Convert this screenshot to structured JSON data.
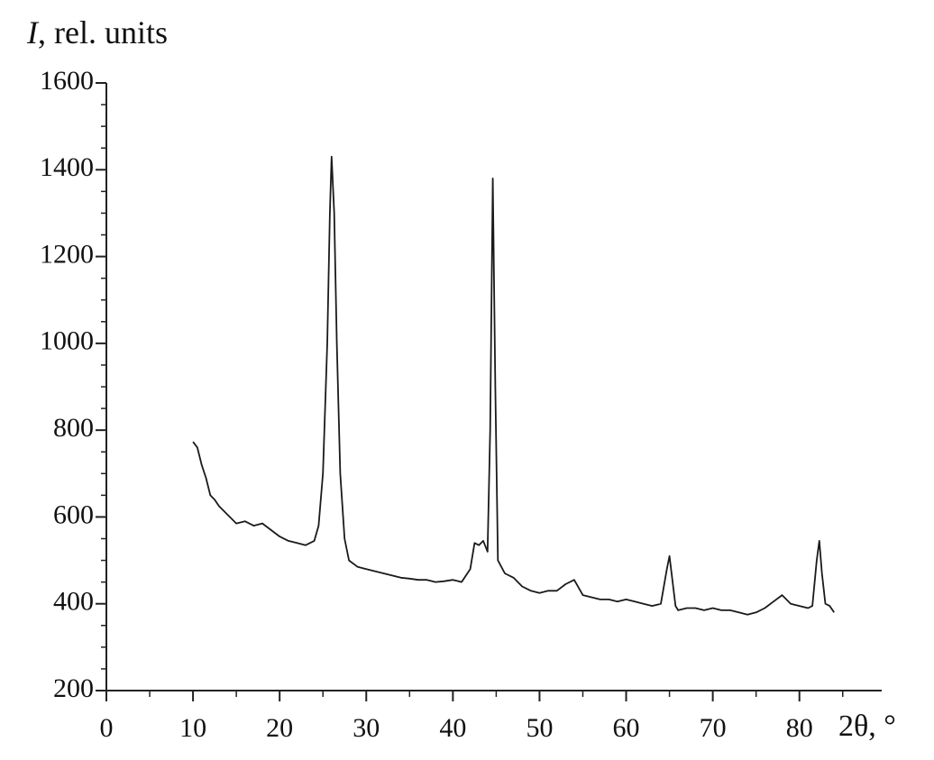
{
  "chart_data": {
    "type": "line",
    "ylabel": {
      "symbol": "I",
      "text": ", rel. units"
    },
    "xlabel": "2θ, °",
    "xlim": [
      0,
      89.5
    ],
    "ylim": [
      200,
      1600
    ],
    "xticks": [
      0,
      10,
      20,
      30,
      40,
      50,
      60,
      70,
      80
    ],
    "yticks": [
      200,
      400,
      600,
      800,
      1000,
      1200,
      1400,
      1600
    ],
    "xticks_minor": [
      5,
      15,
      25,
      35,
      45,
      55,
      65,
      75,
      85
    ],
    "yticks_minor": [
      250,
      300,
      350,
      450,
      500,
      550,
      650,
      700,
      750,
      850,
      900,
      950,
      1050,
      1100,
      1150,
      1250,
      1300,
      1350,
      1450,
      1500,
      1550
    ],
    "series": [
      {
        "color": "#1a1a1a",
        "x": [
          10,
          10.5,
          11,
          11.5,
          12,
          12.5,
          13,
          14,
          15,
          16,
          17,
          18,
          19,
          20,
          21,
          22,
          23,
          24,
          24.5,
          25,
          25.5,
          25.8,
          26,
          26.3,
          26.6,
          27,
          27.5,
          28,
          29,
          30,
          31,
          32,
          33,
          34,
          35,
          36,
          37,
          38,
          39,
          40,
          41,
          42,
          42.5,
          43,
          43.5,
          44,
          44.3,
          44.6,
          44.9,
          45.2,
          46,
          47,
          48,
          49,
          50,
          51,
          52,
          53,
          54,
          55,
          56,
          57,
          58,
          59,
          60,
          61,
          62,
          63,
          64,
          64.7,
          65,
          65.3,
          65.7,
          66,
          67,
          68,
          69,
          70,
          71,
          72,
          73,
          74,
          75,
          76,
          77,
          78,
          79,
          80,
          81,
          81.5,
          82,
          82.3,
          82.6,
          83,
          83.5,
          84
        ],
        "values": [
          773,
          760,
          720,
          690,
          650,
          640,
          625,
          605,
          585,
          590,
          580,
          585,
          570,
          555,
          545,
          540,
          535,
          545,
          580,
          700,
          1000,
          1300,
          1430,
          1300,
          1000,
          700,
          550,
          500,
          485,
          480,
          475,
          470,
          465,
          460,
          458,
          455,
          455,
          450,
          452,
          455,
          450,
          480,
          540,
          535,
          545,
          520,
          800,
          1380,
          900,
          500,
          470,
          460,
          440,
          430,
          425,
          430,
          430,
          445,
          455,
          420,
          415,
          410,
          410,
          405,
          410,
          405,
          400,
          395,
          400,
          480,
          510,
          460,
          395,
          385,
          390,
          390,
          385,
          390,
          385,
          385,
          380,
          375,
          380,
          390,
          405,
          420,
          400,
          395,
          390,
          395,
          500,
          545,
          470,
          400,
          395,
          380
        ]
      }
    ]
  }
}
